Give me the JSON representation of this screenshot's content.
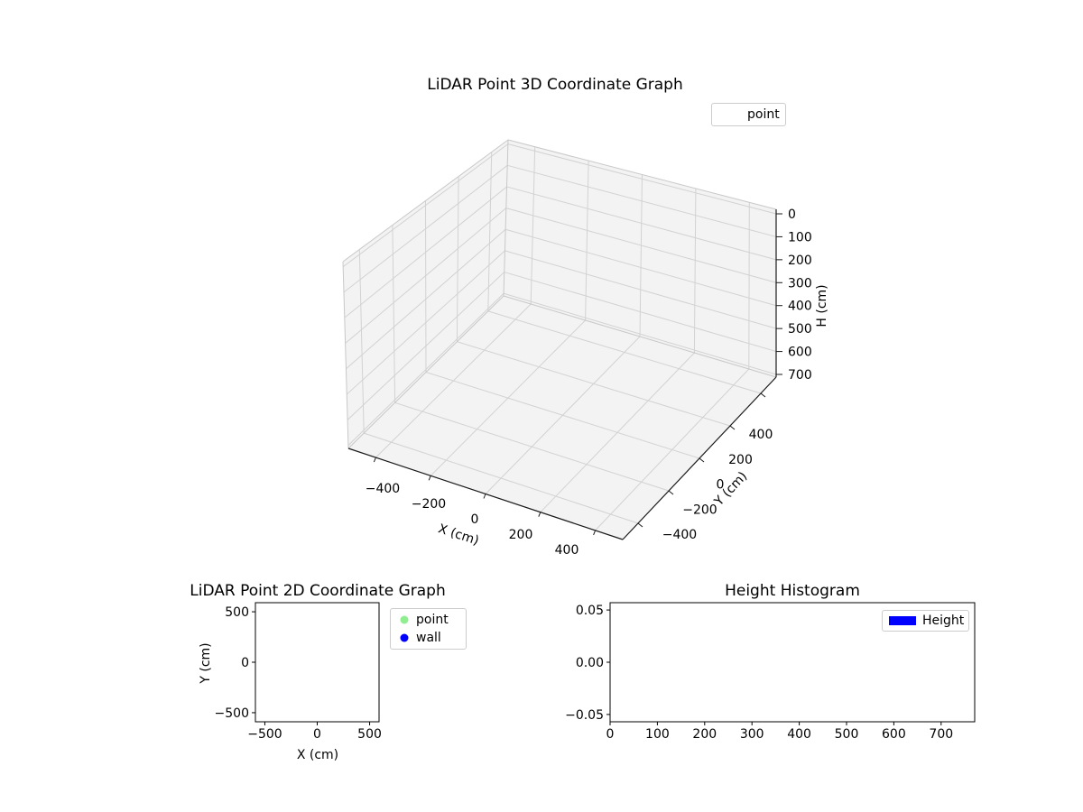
{
  "figure": {
    "background": "#ffffff"
  },
  "chart_data": [
    {
      "id": "lidar-3d",
      "type": "scatter3d",
      "title": "LiDAR Point 3D Coordinate Graph",
      "xlabel": "X (cm)",
      "ylabel": "Y (cm)",
      "zlabel": "H (cm)",
      "xlim": [
        -500,
        500
      ],
      "ylim": [
        -500,
        500
      ],
      "zlim": [
        0,
        750
      ],
      "z_axis_inverted": true,
      "grid": true,
      "xticks": {
        "values": [
          -400,
          -200,
          0,
          200,
          400
        ],
        "labels": [
          "−400",
          "−200",
          "0",
          "200",
          "400"
        ]
      },
      "yticks": {
        "values": [
          -400,
          -200,
          0,
          200,
          400
        ],
        "labels": [
          "−400",
          "−200",
          "0",
          "200",
          "400"
        ]
      },
      "zticks": {
        "values": [
          0,
          100,
          200,
          300,
          400,
          500,
          600,
          700
        ],
        "labels": [
          "0",
          "100",
          "200",
          "300",
          "400",
          "500",
          "600",
          "700"
        ]
      },
      "legend": {
        "location": "upper right",
        "entries": [
          {
            "label": "point",
            "marker": "none"
          }
        ]
      },
      "series": [
        {
          "name": "point",
          "points": []
        }
      ]
    },
    {
      "id": "lidar-2d",
      "type": "scatter",
      "title": "LiDAR Point 2D Coordinate Graph",
      "xlabel": "X (cm)",
      "ylabel": "Y (cm)",
      "xlim": [
        -590,
        590
      ],
      "ylim": [
        -590,
        590
      ],
      "grid": false,
      "xticks": {
        "values": [
          -500,
          0,
          500
        ],
        "labels": [
          "−500",
          "0",
          "500"
        ]
      },
      "yticks": {
        "values": [
          -500,
          0,
          500
        ],
        "labels": [
          "−500",
          "0",
          "500"
        ]
      },
      "legend": {
        "location": "outside upper right",
        "entries": [
          {
            "label": "point",
            "marker": "circle",
            "color": "#90ee90"
          },
          {
            "label": "wall",
            "marker": "circle",
            "color": "#0000ff"
          }
        ]
      },
      "series": [
        {
          "name": "point",
          "color": "#90ee90",
          "points": []
        },
        {
          "name": "wall",
          "color": "#0000ff",
          "points": []
        }
      ]
    },
    {
      "id": "height-histogram",
      "type": "bar",
      "title": "Height Histogram",
      "xlabel": "",
      "ylabel": "",
      "xlim": [
        0,
        771
      ],
      "ylim": [
        -0.057,
        0.057
      ],
      "grid": false,
      "xticks": {
        "values": [
          0,
          100,
          200,
          300,
          400,
          500,
          600,
          700
        ],
        "labels": [
          "0",
          "100",
          "200",
          "300",
          "400",
          "500",
          "600",
          "700"
        ]
      },
      "yticks": {
        "values": [
          -0.05,
          0,
          0.05
        ],
        "labels": [
          "−0.05",
          "0.00",
          "0.05"
        ]
      },
      "legend": {
        "location": "upper right",
        "entries": [
          {
            "label": "Height",
            "marker": "rect",
            "color": "#0000ff"
          }
        ]
      },
      "values": []
    }
  ]
}
